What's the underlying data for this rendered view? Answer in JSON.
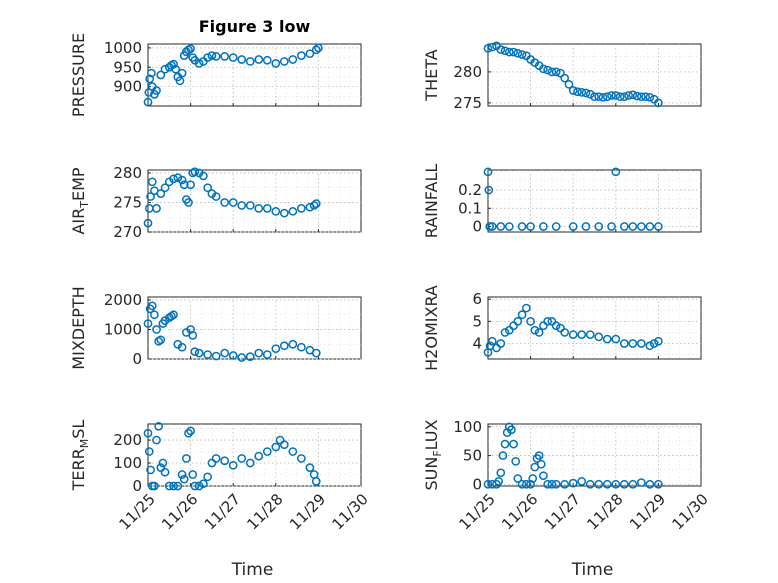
{
  "figure": {
    "title": "Figure 3 low",
    "xlabel": "Time",
    "x_ticks": [
      "11/25",
      "11/26",
      "11/27",
      "11/28",
      "11/29",
      "11/30"
    ],
    "marker_color": "#0072BD"
  },
  "chart_data": [
    {
      "type": "scatter",
      "name": "pressure-plot",
      "col": 0,
      "row": 0,
      "title": "Figure 3 low",
      "ylabel": "PRESSURE",
      "sub": "",
      "ylim": [
        850,
        1010
      ],
      "yticks": [
        900,
        950,
        1000
      ],
      "xlim": [
        0,
        5
      ],
      "grid": true,
      "x": [
        0,
        0.02,
        0.04,
        0.08,
        0.1,
        0.15,
        0.2,
        0.3,
        0.4,
        0.5,
        0.55,
        0.6,
        0.65,
        0.7,
        0.75,
        0.8,
        0.85,
        0.9,
        0.95,
        1.0,
        1.05,
        1.1,
        1.2,
        1.3,
        1.4,
        1.5,
        1.6,
        1.8,
        2.0,
        2.2,
        2.4,
        2.6,
        2.8,
        3.0,
        3.2,
        3.4,
        3.6,
        3.8,
        3.95,
        4.0
      ],
      "y": [
        860,
        885,
        920,
        935,
        900,
        880,
        890,
        930,
        945,
        950,
        955,
        958,
        945,
        925,
        915,
        935,
        980,
        990,
        995,
        998,
        975,
        968,
        960,
        965,
        975,
        980,
        978,
        978,
        975,
        970,
        965,
        970,
        968,
        960,
        965,
        970,
        980,
        985,
        995,
        1000
      ]
    },
    {
      "type": "scatter",
      "name": "theta-plot",
      "col": 1,
      "row": 0,
      "ylabel": "THETA",
      "sub": "",
      "ylim": [
        274.5,
        284.5
      ],
      "yticks": [
        275,
        280
      ],
      "xlim": [
        0,
        5
      ],
      "grid": true,
      "x": [
        0,
        0.1,
        0.2,
        0.3,
        0.4,
        0.5,
        0.6,
        0.7,
        0.8,
        0.9,
        1.0,
        1.1,
        1.2,
        1.3,
        1.4,
        1.5,
        1.6,
        1.7,
        1.8,
        1.9,
        2.0,
        2.1,
        2.2,
        2.3,
        2.4,
        2.5,
        2.6,
        2.7,
        2.8,
        2.9,
        3.0,
        3.1,
        3.2,
        3.3,
        3.4,
        3.5,
        3.6,
        3.7,
        3.8,
        3.9,
        4.0
      ],
      "y": [
        283.8,
        284,
        284.2,
        283.6,
        283.4,
        283.2,
        283.2,
        283,
        282.8,
        282.6,
        282,
        281.5,
        281,
        280.5,
        280.3,
        280,
        280,
        279.8,
        279,
        278,
        277,
        276.8,
        276.7,
        276.6,
        276.4,
        276,
        276,
        275.9,
        276,
        276.2,
        276.2,
        276,
        276,
        276.2,
        276.3,
        276.1,
        276,
        276,
        275.9,
        275.6,
        275
      ]
    },
    {
      "type": "scatter",
      "name": "air-temp-plot",
      "col": 0,
      "row": 1,
      "ylabel": "AIR",
      "sub": "T",
      "ylabel2": "EMP",
      "ylim": [
        270,
        280.5
      ],
      "yticks": [
        270,
        275,
        280
      ],
      "xlim": [
        0,
        5
      ],
      "grid": true,
      "x": [
        0,
        0.03,
        0.06,
        0.1,
        0.15,
        0.2,
        0.3,
        0.4,
        0.5,
        0.6,
        0.7,
        0.8,
        0.85,
        0.9,
        0.95,
        1.0,
        1.05,
        1.1,
        1.2,
        1.3,
        1.4,
        1.5,
        1.6,
        1.8,
        2.0,
        2.2,
        2.4,
        2.6,
        2.8,
        3.0,
        3.2,
        3.4,
        3.6,
        3.8,
        3.9,
        3.95
      ],
      "y": [
        271.5,
        274,
        276,
        278.5,
        277,
        274,
        276.5,
        277.5,
        278.5,
        279,
        279.2,
        278.8,
        278,
        275.5,
        275,
        278,
        280,
        280.2,
        280,
        279.5,
        277.5,
        276.5,
        276,
        275,
        275,
        274.5,
        274.5,
        274,
        274,
        273.5,
        273.2,
        273.5,
        274,
        274.2,
        274.5,
        274.8
      ]
    },
    {
      "type": "scatter",
      "name": "rainfall-plot",
      "col": 1,
      "row": 1,
      "ylabel": "RAINFALL",
      "sub": "",
      "ylim": [
        -0.03,
        0.31
      ],
      "yticks": [
        0,
        0.1,
        0.2
      ],
      "xlim": [
        0,
        5
      ],
      "grid": true,
      "x": [
        0,
        0.02,
        0.04,
        0.1,
        0.3,
        0.5,
        0.8,
        1.0,
        1.3,
        1.6,
        2.0,
        2.3,
        2.6,
        2.9,
        3.0,
        3.2,
        3.4,
        3.6,
        3.8,
        4.0
      ],
      "y": [
        0.3,
        0.2,
        0,
        0,
        0,
        0,
        0,
        0,
        0,
        0,
        0,
        0,
        0,
        0,
        0.3,
        0,
        0,
        0,
        0,
        0
      ]
    },
    {
      "type": "scatter",
      "name": "mixdepth-plot",
      "col": 0,
      "row": 2,
      "ylabel": "MIXDEPTH",
      "sub": "",
      "ylim": [
        0,
        2100
      ],
      "yticks": [
        0,
        1000,
        2000
      ],
      "xlim": [
        0,
        5
      ],
      "grid": true,
      "x": [
        0,
        0.05,
        0.1,
        0.15,
        0.2,
        0.25,
        0.3,
        0.35,
        0.4,
        0.5,
        0.55,
        0.6,
        0.7,
        0.8,
        0.9,
        1.0,
        1.05,
        1.1,
        1.2,
        1.4,
        1.6,
        1.8,
        2.0,
        2.2,
        2.4,
        2.6,
        2.8,
        3.0,
        3.2,
        3.4,
        3.6,
        3.8,
        3.95
      ],
      "y": [
        1200,
        1700,
        1800,
        1500,
        1000,
        600,
        650,
        1200,
        1300,
        1400,
        1450,
        1500,
        500,
        400,
        900,
        1000,
        800,
        250,
        200,
        150,
        100,
        200,
        120,
        50,
        80,
        200,
        150,
        350,
        450,
        500,
        400,
        300,
        200
      ]
    },
    {
      "type": "scatter",
      "name": "h2omixra-plot",
      "col": 1,
      "row": 2,
      "ylabel": "H2OMIXRA",
      "sub": "",
      "ylim": [
        3.3,
        6.1
      ],
      "yticks": [
        4,
        5,
        6
      ],
      "xlim": [
        0,
        5
      ],
      "grid": true,
      "x": [
        0,
        0.05,
        0.1,
        0.2,
        0.3,
        0.4,
        0.5,
        0.6,
        0.7,
        0.8,
        0.9,
        1.0,
        1.1,
        1.2,
        1.3,
        1.4,
        1.5,
        1.6,
        1.7,
        1.8,
        2.0,
        2.2,
        2.4,
        2.6,
        2.8,
        3.0,
        3.2,
        3.4,
        3.6,
        3.8,
        3.9,
        4.0
      ],
      "y": [
        3.6,
        3.9,
        4.1,
        3.8,
        4.0,
        4.5,
        4.6,
        4.8,
        5.0,
        5.3,
        5.6,
        5.0,
        4.6,
        4.5,
        4.8,
        5.0,
        5.0,
        4.8,
        4.7,
        4.5,
        4.4,
        4.4,
        4.4,
        4.3,
        4.2,
        4.2,
        4.0,
        4.0,
        4.0,
        3.9,
        4.0,
        4.1
      ]
    },
    {
      "type": "scatter",
      "name": "terr-msl-plot",
      "col": 0,
      "row": 3,
      "ylabel": "TERR",
      "sub": "M",
      "ylabel2": "SL",
      "ylim": [
        0,
        270
      ],
      "yticks": [
        0,
        100,
        200
      ],
      "xlim": [
        0,
        5
      ],
      "grid": true,
      "x": [
        0,
        0.03,
        0.06,
        0.1,
        0.15,
        0.2,
        0.25,
        0.3,
        0.35,
        0.4,
        0.5,
        0.6,
        0.7,
        0.8,
        0.85,
        0.9,
        0.95,
        1.0,
        1.05,
        1.1,
        1.2,
        1.3,
        1.4,
        1.5,
        1.6,
        1.8,
        2.0,
        2.2,
        2.4,
        2.6,
        2.8,
        3.0,
        3.1,
        3.2,
        3.4,
        3.6,
        3.8,
        3.9,
        3.95
      ],
      "y": [
        230,
        150,
        70,
        0,
        0,
        200,
        260,
        80,
        100,
        60,
        0,
        0,
        0,
        50,
        30,
        120,
        230,
        240,
        50,
        0,
        0,
        10,
        40,
        100,
        120,
        110,
        90,
        120,
        100,
        130,
        150,
        170,
        200,
        180,
        150,
        120,
        80,
        50,
        20
      ]
    },
    {
      "type": "scatter",
      "name": "sun-flux-plot",
      "col": 1,
      "row": 3,
      "ylabel": "SUN",
      "sub": "F",
      "ylabel2": "LUX",
      "ylim": [
        -3,
        105
      ],
      "yticks": [
        0,
        50,
        100
      ],
      "xlim": [
        0,
        5
      ],
      "grid": true,
      "x": [
        0,
        0.1,
        0.2,
        0.25,
        0.3,
        0.35,
        0.4,
        0.45,
        0.5,
        0.55,
        0.6,
        0.65,
        0.7,
        0.8,
        0.9,
        1.0,
        1.05,
        1.1,
        1.15,
        1.2,
        1.25,
        1.3,
        1.4,
        1.5,
        1.6,
        1.8,
        2.0,
        2.2,
        2.4,
        2.6,
        2.8,
        3.0,
        3.2,
        3.4,
        3.6,
        3.8,
        4.0
      ],
      "y": [
        0,
        0,
        0,
        5,
        20,
        50,
        70,
        90,
        100,
        95,
        70,
        40,
        10,
        0,
        0,
        0,
        10,
        30,
        45,
        50,
        35,
        15,
        0,
        0,
        0,
        0,
        2,
        5,
        0,
        0,
        0,
        0,
        0,
        0,
        3,
        0,
        0
      ]
    }
  ]
}
